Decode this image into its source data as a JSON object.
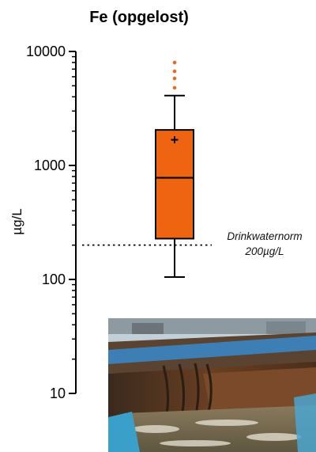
{
  "chart_data": {
    "type": "box",
    "title": "Fe (opgelost)",
    "ylabel": "µg/L",
    "yscale": "log",
    "ylim": [
      10,
      10000
    ],
    "yticks": [
      10,
      100,
      1000,
      10000
    ],
    "ytick_labels": [
      "10",
      "100",
      "1000",
      "10000"
    ],
    "box": {
      "whisker_low": 105,
      "q1": 228,
      "median": 780,
      "q3": 2050,
      "whisker_high": 4100,
      "mean": 1680,
      "outliers": [
        4800,
        5800,
        6700,
        8000
      ]
    },
    "reference_line": {
      "value": 200,
      "label_line1": "Drinkwaternorm",
      "label_line2": "200µg/L"
    }
  },
  "colors": {
    "box_fill": "#ee6410",
    "outlier": "#ee6a1a",
    "line": "#000000"
  },
  "photo": {
    "icon": "industrial-tank-photo"
  }
}
